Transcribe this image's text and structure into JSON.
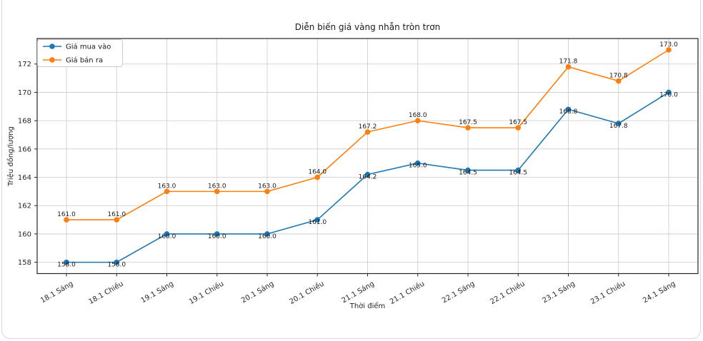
{
  "chart_data": {
    "type": "line",
    "title": "Diễn biến giá vàng nhẫn tròn trơn",
    "xlabel": "Thời điểm",
    "ylabel": "Triệu đồng/lượng",
    "categories": [
      "18.1 Sáng",
      "18.1 Chiều",
      "19.1 Sáng",
      "19.1 Chiều",
      "20.1 Sáng",
      "20.1 Chiều",
      "21.1 Sáng",
      "21.1 Chiều",
      "22.1 Sáng",
      "22.1 Chiều",
      "23.1 Sáng",
      "23.1 Chiều",
      "24.1 Sáng"
    ],
    "series": [
      {
        "name": "Giá mua vào",
        "color": "#1f77b4",
        "values": [
          158.0,
          158.0,
          160.0,
          160.0,
          160.0,
          161.0,
          164.2,
          165.0,
          164.5,
          164.5,
          168.8,
          167.8,
          170.0
        ],
        "label_position": "on-point"
      },
      {
        "name": "Giá bán ra",
        "color": "#ff7f0e",
        "values": [
          161.0,
          161.0,
          163.0,
          163.0,
          163.0,
          164.0,
          167.2,
          168.0,
          167.5,
          167.5,
          171.8,
          170.8,
          173.0
        ],
        "label_position": "above"
      }
    ],
    "yticks": [
      158,
      160,
      162,
      164,
      166,
      168,
      170,
      172
    ],
    "ylim": [
      157.2,
      173.8
    ],
    "grid": true,
    "legend_position": "upper left",
    "point_labels": true,
    "x_tick_rotation": 30,
    "axis_color": "#262626",
    "grid_color": "#c9c9c9",
    "text_color": "#262626",
    "annotation_color": "#1a1a1a"
  }
}
